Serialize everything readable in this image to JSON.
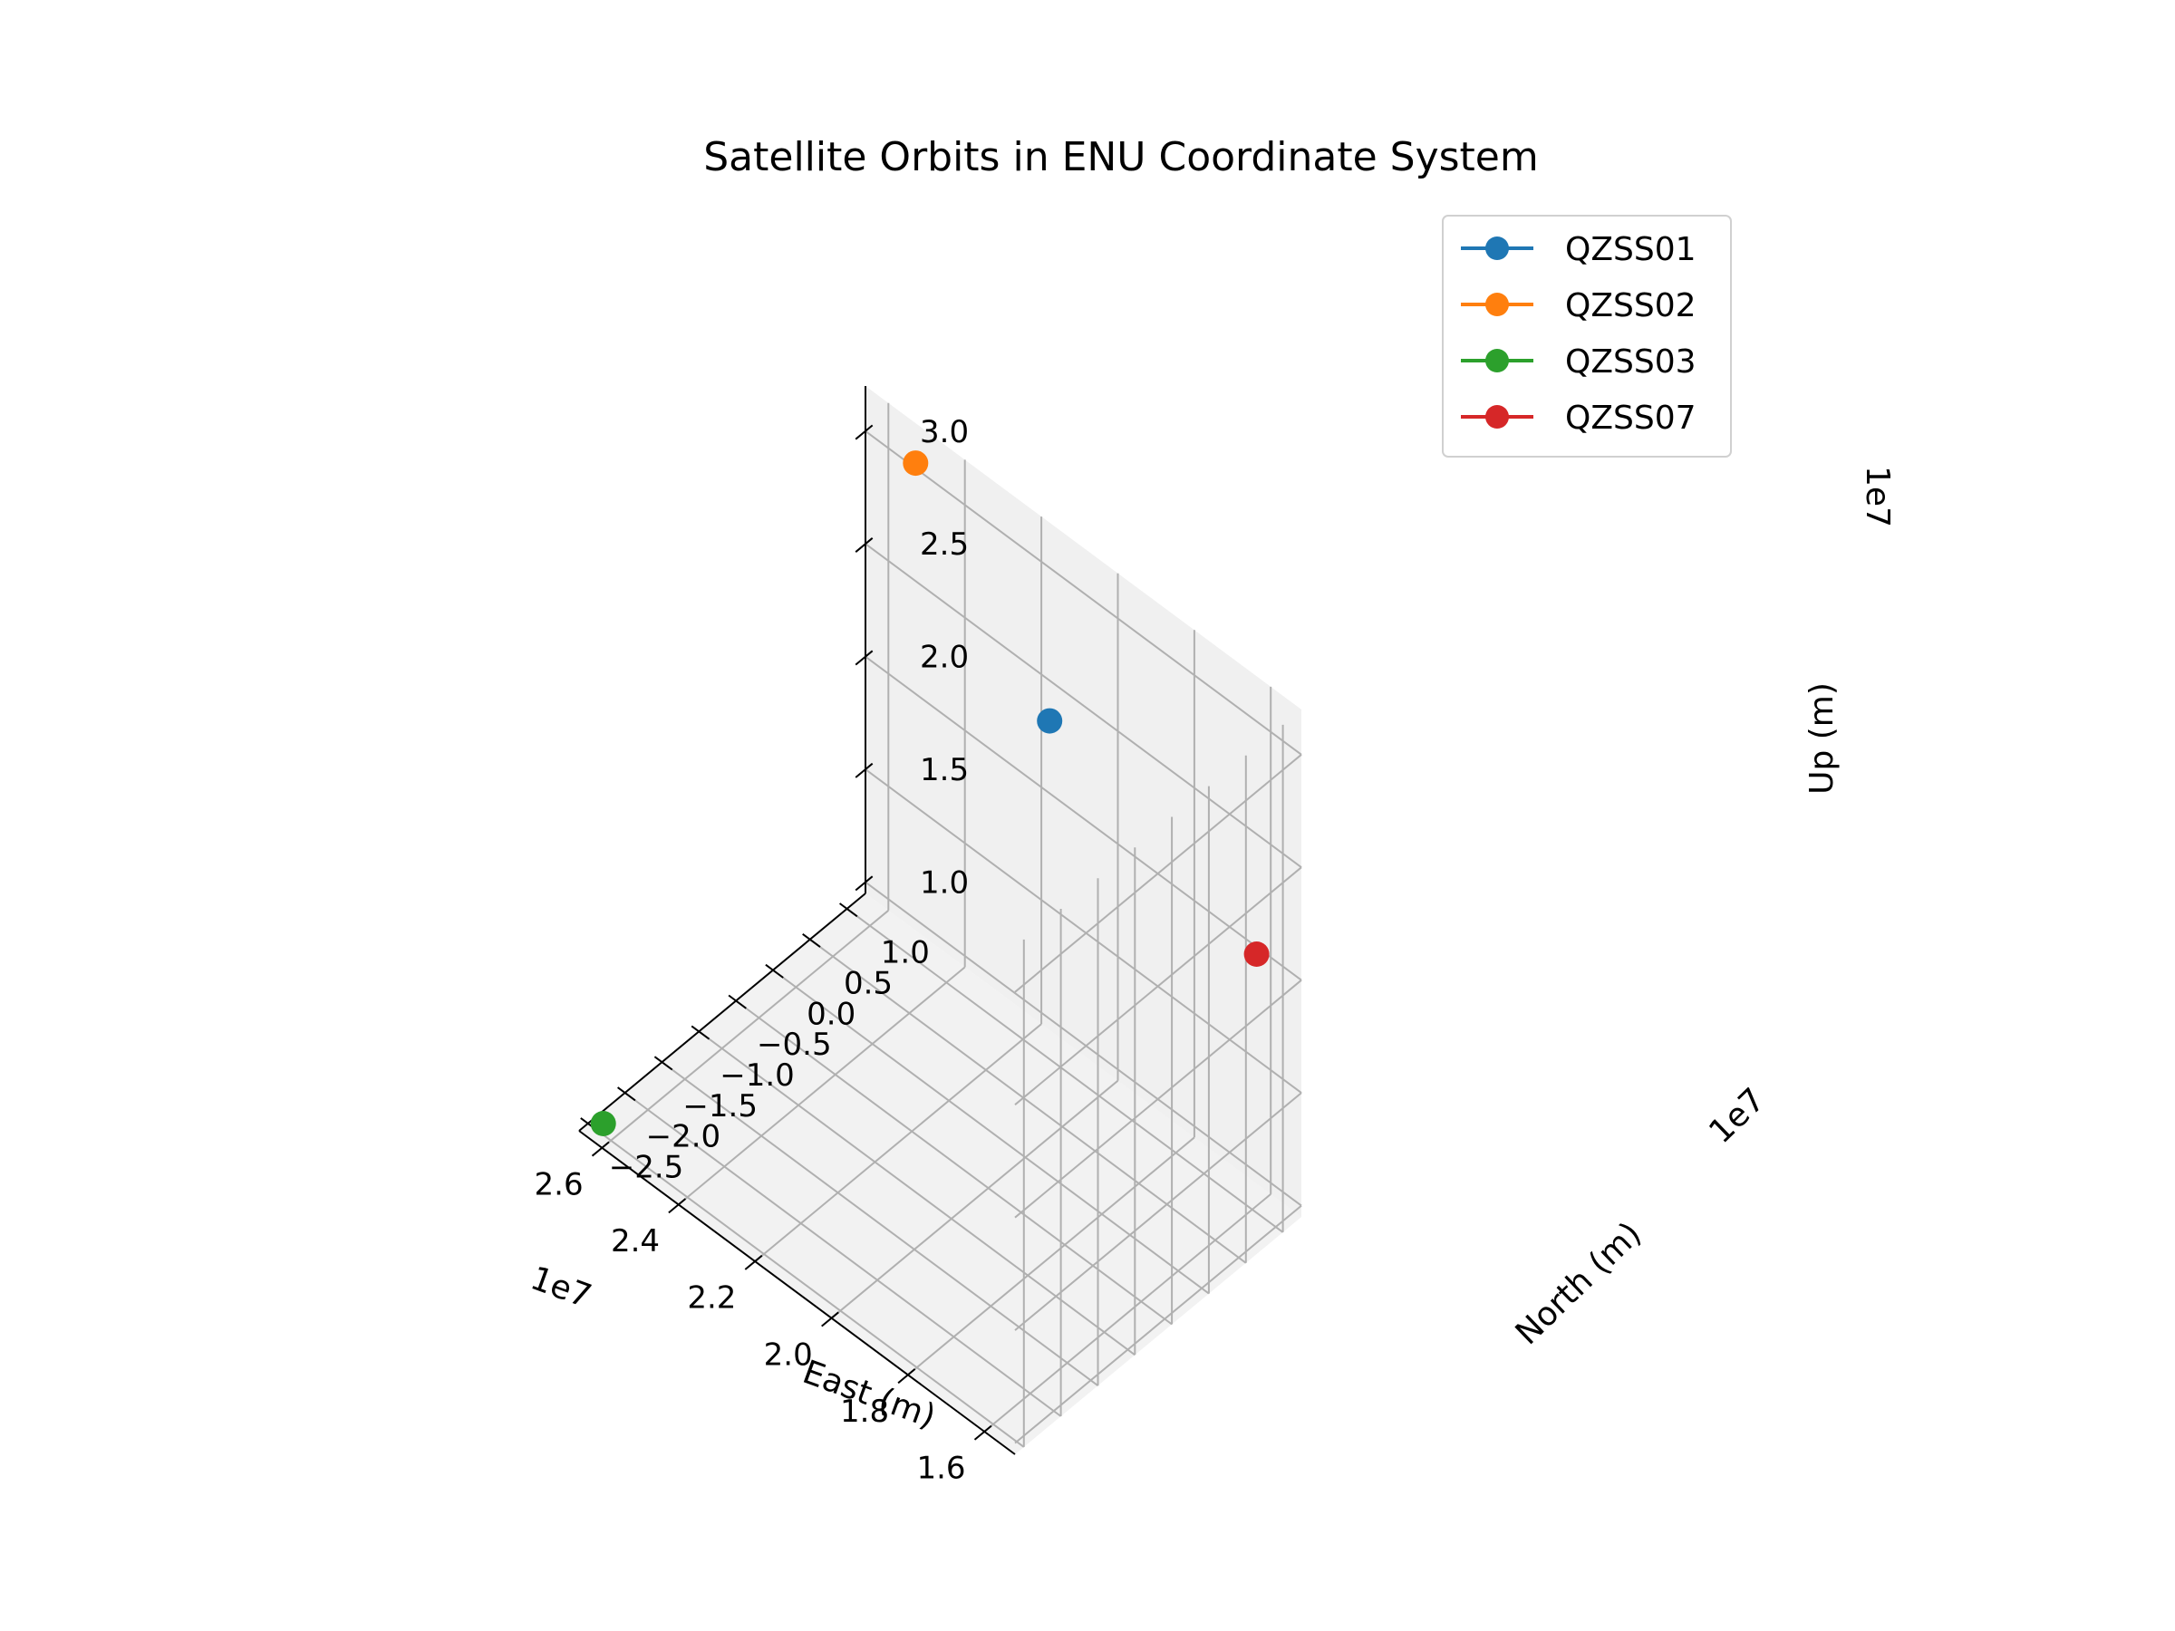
{
  "chart_data": {
    "type": "scatter",
    "title": "Satellite Orbits in ENU Coordinate System",
    "xlabel": "East (m)",
    "ylabel": "North (m)",
    "zlabel": "Up (m)",
    "x_exponent": "1e7",
    "y_exponent": "1e7",
    "z_exponent": "1e7",
    "xlim": [
      1.52,
      2.66
    ],
    "ylim": [
      -2.62,
      1.25
    ],
    "zlim": [
      0.95,
      3.2
    ],
    "x_ticks": [
      1.6,
      1.8,
      2.0,
      2.2,
      2.4,
      2.6
    ],
    "x_tick_labels": [
      "1.6",
      "1.8",
      "2.0",
      "2.2",
      "2.4",
      "2.6"
    ],
    "y_ticks": [
      1.0,
      0.5,
      0.0,
      -0.5,
      -1.0,
      -1.5,
      -2.0,
      -2.5
    ],
    "y_tick_labels": [
      "1.0",
      "0.5",
      "0.0",
      "−0.5",
      "−1.0",
      "−1.5",
      "−2.0",
      "−2.5"
    ],
    "z_ticks": [
      1.0,
      1.5,
      2.0,
      2.5,
      3.0
    ],
    "z_tick_labels": [
      "1.0",
      "1.5",
      "2.0",
      "2.5",
      "3.0"
    ],
    "grid": true,
    "legend_position": "top-right",
    "series": [
      {
        "name": "QZSS01",
        "color": "#1f77b4",
        "x": 2.13,
        "y": 1.0,
        "z": 2.45
      },
      {
        "name": "QZSS02",
        "color": "#ff7f0e",
        "x": 2.5,
        "y": 1.1,
        "z": 3.1
      },
      {
        "name": "QZSS03",
        "color": "#2ca02c",
        "x": 2.62,
        "y": -2.5,
        "z": 1.0
      },
      {
        "name": "QZSS07",
        "color": "#d62728",
        "x": 1.55,
        "y": 0.8,
        "z": 2.2
      }
    ]
  }
}
